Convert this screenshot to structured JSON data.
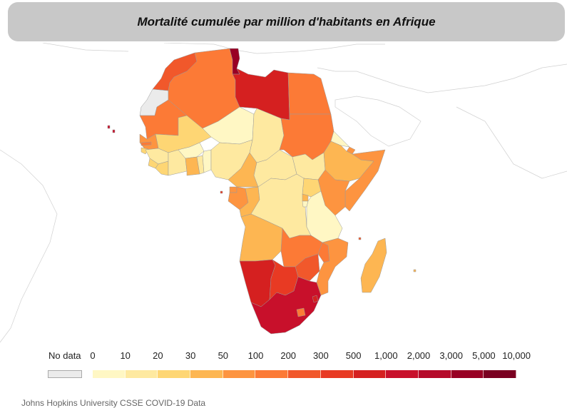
{
  "title": "Mortalité cumulée par million d'habitants en Afrique",
  "legend": {
    "no_data_label": "No data",
    "no_data_color": "#ebebeb",
    "ticks": [
      "0",
      "10",
      "20",
      "30",
      "50",
      "100",
      "200",
      "300",
      "500",
      "1,000",
      "2,000",
      "3,000",
      "5,000",
      "10,000"
    ],
    "colors": [
      "#fff7c4",
      "#fee9a0",
      "#fed674",
      "#fdb652",
      "#fd9440",
      "#fc7a36",
      "#f1582b",
      "#e83a23",
      "#d52020",
      "#c8102b",
      "#b50a2a",
      "#980024",
      "#7a0021"
    ]
  },
  "source": "Johns Hopkins University CSSE COVID-19 Data",
  "countries": [
    {
      "name": "Morocco",
      "bin": "#f1582b"
    },
    {
      "name": "Western Sahara",
      "bin": "no-data"
    },
    {
      "name": "Algeria",
      "bin": "#fc7a36"
    },
    {
      "name": "Tunisia",
      "bin": "#980024"
    },
    {
      "name": "Libya",
      "bin": "#d52020"
    },
    {
      "name": "Egypt",
      "bin": "#fc7a36"
    },
    {
      "name": "Mauritania",
      "bin": "#fc7a36"
    },
    {
      "name": "Mali",
      "bin": "#fed674"
    },
    {
      "name": "Niger",
      "bin": "#fff7c4"
    },
    {
      "name": "Chad",
      "bin": "#fee9a0"
    },
    {
      "name": "Sudan",
      "bin": "#fc7a36"
    },
    {
      "name": "Senegal",
      "bin": "#fd9440"
    },
    {
      "name": "Gambia",
      "bin": "#fc7a36"
    },
    {
      "name": "Guinea-Bissau",
      "bin": "#fed674"
    },
    {
      "name": "Guinea",
      "bin": "#fee9a0"
    },
    {
      "name": "Sierra Leone",
      "bin": "#fed674"
    },
    {
      "name": "Liberia",
      "bin": "#fed674"
    },
    {
      "name": "Ivory Coast",
      "bin": "#fee9a0"
    },
    {
      "name": "Burkina Faso",
      "bin": "#fff7c4"
    },
    {
      "name": "Ghana",
      "bin": "#fdb652"
    },
    {
      "name": "Togo",
      "bin": "#fee9a0"
    },
    {
      "name": "Benin",
      "bin": "#fff7c4"
    },
    {
      "name": "Nigeria",
      "bin": "#fee9a0"
    },
    {
      "name": "Cameroon",
      "bin": "#fdb652"
    },
    {
      "name": "Central African Republic",
      "bin": "#fee9a0"
    },
    {
      "name": "South Sudan",
      "bin": "#fee9a0"
    },
    {
      "name": "Eritrea",
      "bin": "#fff7c4"
    },
    {
      "name": "Ethiopia",
      "bin": "#fdb652"
    },
    {
      "name": "Djibouti",
      "bin": "#fd9440"
    },
    {
      "name": "Somalia",
      "bin": "#fd9440"
    },
    {
      "name": "Kenya",
      "bin": "#fd9440"
    },
    {
      "name": "Uganda",
      "bin": "#fed674"
    },
    {
      "name": "Equatorial Guinea",
      "bin": "#fd9440"
    },
    {
      "name": "Gabon",
      "bin": "#fd9440"
    },
    {
      "name": "Congo",
      "bin": "#fdb652"
    },
    {
      "name": "DR Congo",
      "bin": "#fee9a0"
    },
    {
      "name": "Rwanda",
      "bin": "#fdb652"
    },
    {
      "name": "Burundi",
      "bin": "#fff7c4"
    },
    {
      "name": "Tanzania",
      "bin": "#fff7c4"
    },
    {
      "name": "Angola",
      "bin": "#fdb652"
    },
    {
      "name": "Zambia",
      "bin": "#fc7a36"
    },
    {
      "name": "Malawi",
      "bin": "#fc7a36"
    },
    {
      "name": "Mozambique",
      "bin": "#fd9440"
    },
    {
      "name": "Zimbabwe",
      "bin": "#f1582b"
    },
    {
      "name": "Namibia",
      "bin": "#d52020"
    },
    {
      "name": "Botswana",
      "bin": "#e83a23"
    },
    {
      "name": "South Africa",
      "bin": "#c8102b"
    },
    {
      "name": "Lesotho",
      "bin": "#fc7a36"
    },
    {
      "name": "Eswatini",
      "bin": "#d52020"
    },
    {
      "name": "Madagascar",
      "bin": "#fdb652"
    },
    {
      "name": "Cape Verde",
      "bin": "#c8102b"
    },
    {
      "name": "Comoros",
      "bin": "#f1582b"
    },
    {
      "name": "Mauritius",
      "bin": "#fdb652"
    },
    {
      "name": "Sao Tome and Principe",
      "bin": "#e83a23"
    }
  ]
}
